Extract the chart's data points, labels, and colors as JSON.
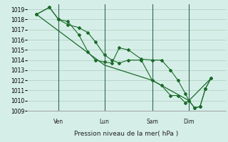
{
  "background_color": "#d6eee8",
  "grid_color": "#aaccbb",
  "line_color": "#1a6b2a",
  "xlabel": "Pression niveau de la mer( hPa )",
  "ylim": [
    1009,
    1019.5
  ],
  "yticks": [
    1009,
    1010,
    1011,
    1012,
    1013,
    1014,
    1015,
    1016,
    1017,
    1018,
    1019
  ],
  "vlines_x": [
    0.17,
    0.42,
    0.68,
    0.88
  ],
  "vline_labels": [
    "Ven",
    "Lun",
    "Sam",
    "Dim"
  ],
  "series1_x": [
    0.05,
    0.12,
    0.17,
    0.22,
    0.28,
    0.33,
    0.37,
    0.42,
    0.46,
    0.5,
    0.55,
    0.62,
    0.68,
    0.73,
    0.78,
    0.82,
    0.86,
    0.88,
    0.91,
    0.94,
    0.97,
    1.0
  ],
  "series1_y": [
    1018.5,
    1019.2,
    1018.0,
    1017.5,
    1017.2,
    1016.7,
    1015.8,
    1014.5,
    1014.0,
    1013.7,
    1014.0,
    1014.0,
    1012.0,
    1011.5,
    1010.5,
    1010.5,
    1009.8,
    1010.0,
    1009.3,
    1009.4,
    1011.2,
    1012.2
  ],
  "series2_x": [
    0.05,
    0.12,
    0.17,
    0.22,
    0.28,
    0.33,
    0.37,
    0.42,
    0.46,
    0.5,
    0.55,
    0.62,
    0.68,
    0.73,
    0.78,
    0.82,
    0.86,
    0.88,
    0.91,
    0.94,
    0.97,
    1.0
  ],
  "series2_y": [
    1018.5,
    1019.2,
    1018.0,
    1017.8,
    1016.5,
    1014.8,
    1014.0,
    1013.8,
    1013.7,
    1015.2,
    1015.0,
    1014.1,
    1014.0,
    1014.0,
    1013.0,
    1012.0,
    1010.7,
    1010.0,
    1009.3,
    1009.4,
    1011.2,
    1012.2
  ],
  "series3_x": [
    0.05,
    0.42,
    0.68,
    0.88,
    1.0
  ],
  "series3_y": [
    1018.5,
    1013.5,
    1012.0,
    1010.0,
    1012.2
  ]
}
